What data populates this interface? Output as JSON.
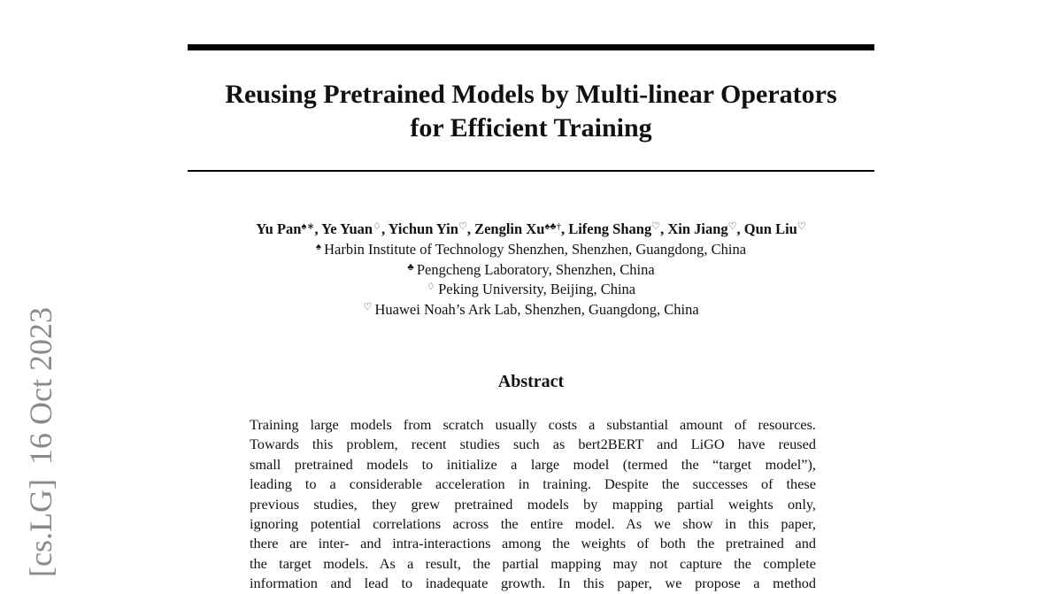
{
  "arxiv_stamp": {
    "category": "[cs.LG]",
    "date": "16 Oct 2023"
  },
  "header": {
    "title_lines": [
      "Reusing Pretrained Models by Multi-linear Operators",
      "for Efficient Training"
    ]
  },
  "authors": {
    "separator": ", ",
    "list": [
      {
        "name": "Yu Pan",
        "marks": "♠∗"
      },
      {
        "name": "Ye Yuan",
        "marks": "♢"
      },
      {
        "name": "Yichun Yin",
        "marks": "♡"
      },
      {
        "name": "Zenglin Xu",
        "marks": "♠♣†"
      },
      {
        "name": "Lifeng Shang",
        "marks": "♡"
      },
      {
        "name": "Xin Jiang",
        "marks": "♡"
      },
      {
        "name": "Qun Liu",
        "marks": "♡"
      }
    ]
  },
  "affiliations": [
    {
      "mark": "♠",
      "text": "Harbin Institute of Technology Shenzhen, Shenzhen, Guangdong, China"
    },
    {
      "mark": "♣",
      "text": "Pengcheng Laboratory, Shenzhen, China"
    },
    {
      "mark": "♢",
      "text": "Peking University, Beijing, China"
    },
    {
      "mark": "♡",
      "text": "Huawei Noah’s Ark Lab, Shenzhen, Guangdong, China"
    }
  ],
  "abstract": {
    "heading": "Abstract",
    "lines": [
      "Training large models from scratch usually costs a substantial amount of resources.",
      "Towards this problem, recent studies such as bert2BERT and LiGO have reused",
      "small pretrained models to initialize a large model (termed the “target model”),",
      "leading to a considerable acceleration in training. Despite the successes of these",
      "previous studies, they grew pretrained models by mapping partial weights only,",
      "ignoring potential correlations across the entire model. As we show in this paper,",
      "there are inter- and intra-interactions among the weights of both the pretrained and",
      "the target models. As a result, the partial mapping may not capture the complete",
      "information and lead to inadequate growth. In this paper, we propose a method"
    ]
  }
}
